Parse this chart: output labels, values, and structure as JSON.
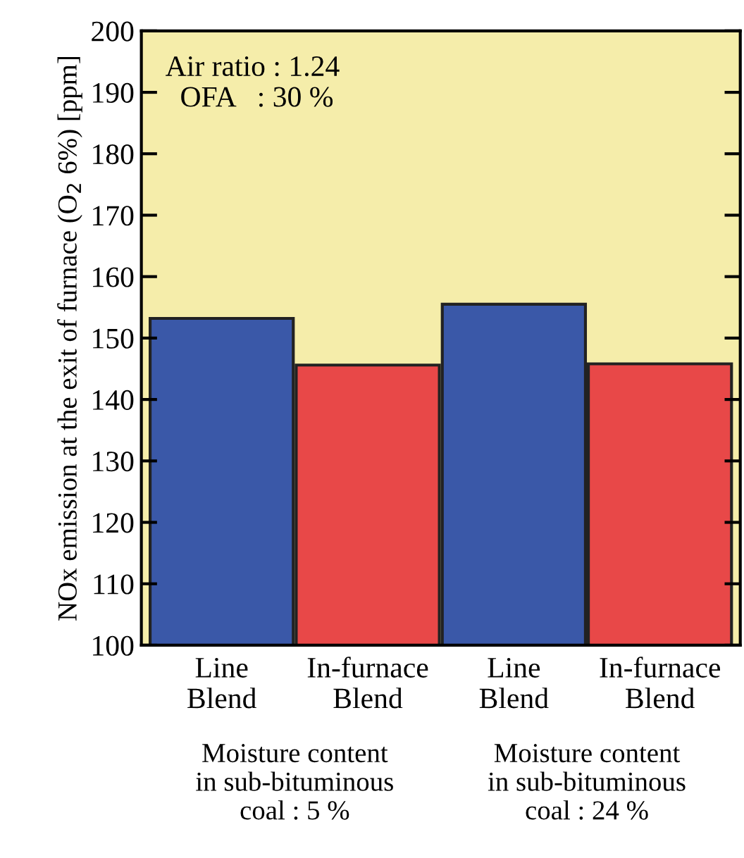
{
  "chart_data": {
    "type": "bar",
    "ylabel": "NOx emission at the exit of furnace (O$_{2}$ 6%) [ppm]",
    "categories": [
      "Line\nBlend",
      "In-furnace\nBlend",
      "Line\nBlend",
      "In-furnace\nBlend"
    ],
    "values": [
      153.2,
      145.6,
      155.5,
      145.8
    ],
    "colors": [
      "#3a58a8",
      "#e84848",
      "#3a58a8",
      "#e84848"
    ],
    "ylim": [
      100,
      200
    ],
    "yticks": [
      100,
      110,
      120,
      130,
      140,
      150,
      160,
      170,
      180,
      190,
      200
    ],
    "annotations": [
      "Air ratio : 1.24\n  OFA   : 30 %",
      "Moisture content\nin sub-bituminous\ncoal : 5 %",
      "Moisture content\nin sub-bituminous\ncoal : 24 %"
    ],
    "grid": false
  }
}
